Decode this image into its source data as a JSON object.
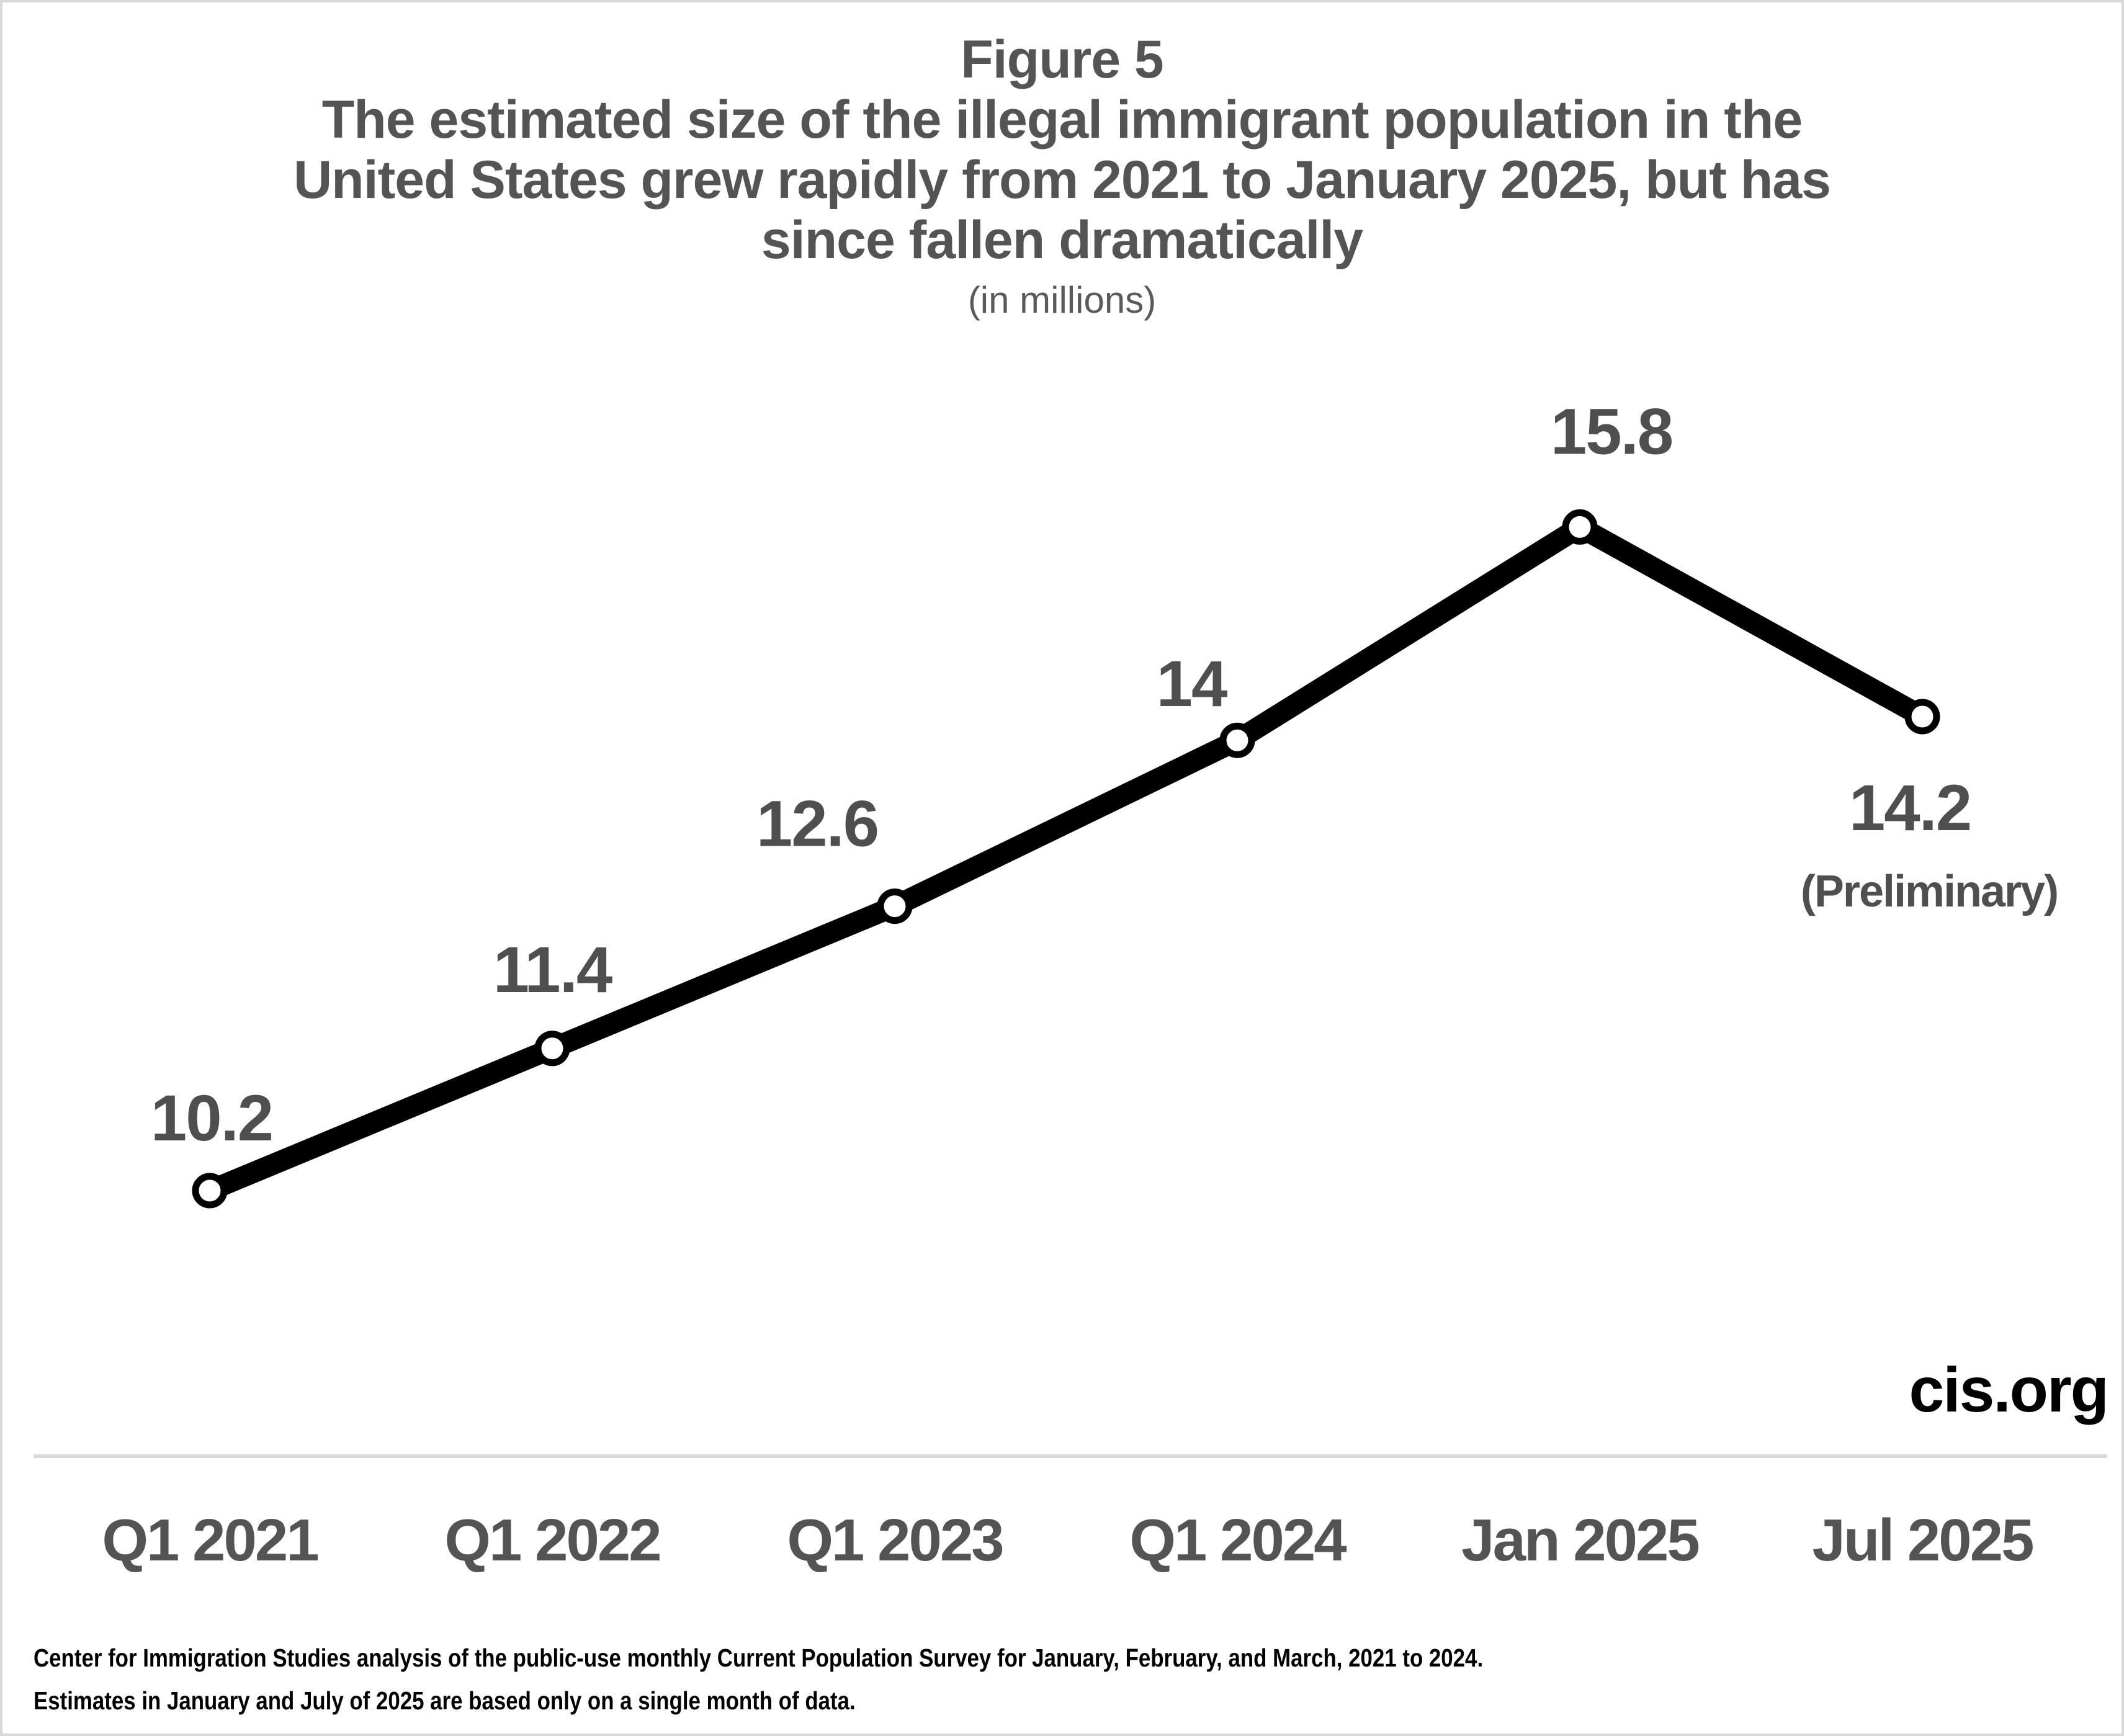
{
  "figure": {
    "label": "Figure 5",
    "title_lines": [
      "The estimated size of the illegal immigrant population in the",
      "United States grew rapidly from 2021 to January 2025, but has",
      "since fallen dramatically"
    ],
    "subtitle": "(in millions)"
  },
  "chart_data": {
    "type": "line",
    "categories": [
      "Q1 2021",
      "Q1 2022",
      "Q1 2023",
      "Q1 2024",
      "Jan 2025",
      "Jul 2025"
    ],
    "series": [
      {
        "values": [
          10.2,
          11.4,
          12.6,
          14,
          15.8,
          14.2
        ],
        "labels": [
          "10.2",
          "11.4",
          "12.6",
          "14",
          "15.8",
          "14.2"
        ]
      }
    ],
    "annotations": {
      "last_point_note": "(Preliminary)"
    },
    "ylim": [
      9.5,
      16.5
    ],
    "grid": false,
    "legend": "none",
    "line_color": "#000000",
    "marker": "circle-white-fill-black-ring",
    "axis_line_color": "#d9d9d9"
  },
  "branding": {
    "site": "cis.org"
  },
  "footnote": {
    "line1": "Center for Immigration Studies analysis of the public-use monthly Current Population Survey for January, February, and March, 2021 to 2024.",
    "line2": "Estimates in January and July of 2025 are based only on a single month of data."
  },
  "colors": {
    "text_gray": "#545454",
    "axis_gray": "#d9d9d9",
    "black": "#000000"
  }
}
